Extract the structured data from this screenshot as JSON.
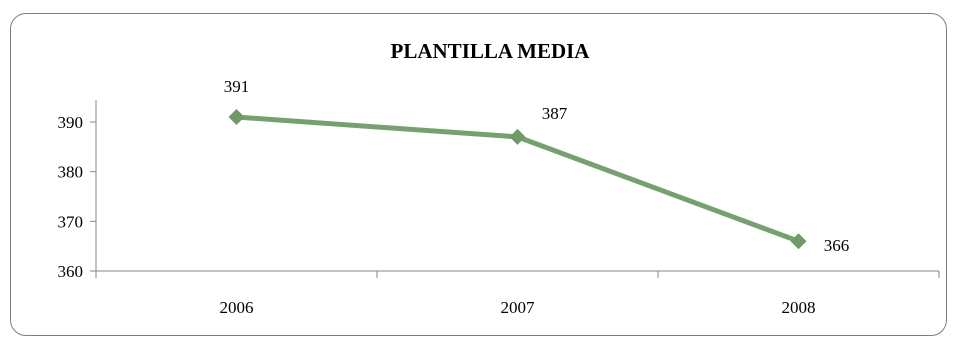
{
  "chart_data": {
    "type": "line",
    "title": "PLANTILLA MEDIA",
    "categories": [
      "2006",
      "2007",
      "2008"
    ],
    "series": [
      {
        "values": [
          391,
          387,
          366
        ],
        "data_labels": [
          "391",
          "387",
          "366"
        ]
      }
    ],
    "ylim": [
      360,
      390
    ],
    "yticks": [
      360,
      370,
      380,
      390
    ],
    "ytick_labels": [
      "360",
      "370",
      "380",
      "390"
    ],
    "grid": false,
    "legend": "none",
    "colors": {
      "line": "#77a070",
      "marker": "#6f9a68",
      "axis": "#868686"
    }
  }
}
